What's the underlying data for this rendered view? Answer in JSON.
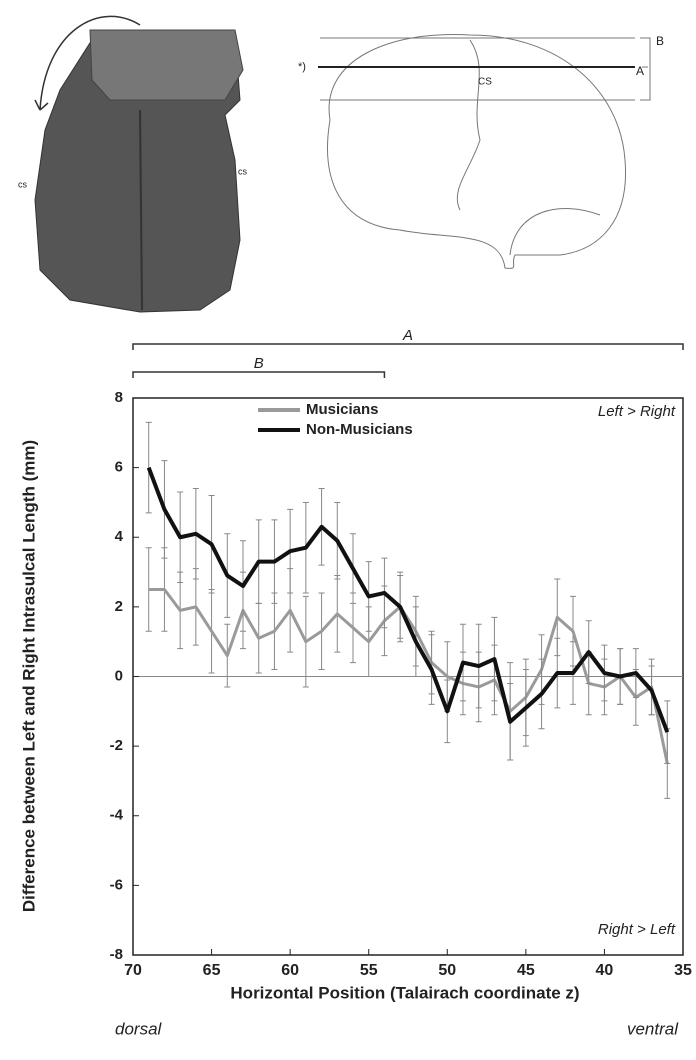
{
  "brain_labels": [
    "cs",
    "cs",
    "*)",
    "CS",
    "A",
    "B"
  ],
  "chart_data": {
    "type": "line",
    "ylabel": "Difference between Left and Right Intrasulcal Length (mm)",
    "xlabel": "Horizontal Position (Talairach coordinate z)",
    "annotations": [
      "Left > Right",
      "Right > Left",
      "dorsal",
      "ventral"
    ],
    "ranges": [
      {
        "label": "A",
        "x": [
          70,
          35
        ]
      },
      {
        "label": "B",
        "x": [
          70,
          54
        ]
      }
    ],
    "xlim": [
      70,
      35
    ],
    "ylim": [
      -8,
      8
    ],
    "xticks": [
      70,
      65,
      60,
      55,
      50,
      45,
      40,
      35
    ],
    "yticks": [
      -8,
      -6,
      -4,
      -2,
      0,
      2,
      4,
      6,
      8
    ],
    "x": [
      69,
      68,
      67,
      66,
      65,
      64,
      63,
      62,
      61,
      60,
      59,
      58,
      57,
      56,
      55,
      54,
      53,
      52,
      51,
      50,
      49,
      48,
      47,
      46,
      45,
      44,
      43,
      42,
      41,
      40,
      39,
      38,
      37,
      36
    ],
    "series": [
      {
        "name": "Musicians",
        "color": "#9a9a9a",
        "values": [
          2.5,
          2.5,
          1.9,
          2.0,
          1.3,
          0.6,
          1.9,
          1.1,
          1.3,
          1.9,
          1.0,
          1.3,
          1.8,
          1.4,
          1.0,
          1.6,
          2.0,
          1.3,
          0.4,
          0.0,
          -0.2,
          -0.3,
          -0.1,
          -1.0,
          -0.6,
          0.2,
          1.7,
          1.3,
          -0.2,
          -0.3,
          0.0,
          -0.6,
          -0.3,
          -2.5
        ],
        "errors": [
          1.2,
          1.2,
          1.1,
          1.1,
          1.2,
          0.9,
          1.1,
          1.0,
          1.1,
          1.2,
          1.3,
          1.1,
          1.1,
          1.0,
          1.0,
          1.0,
          1.0,
          1.0,
          0.9,
          1.0,
          0.9,
          1.0,
          1.0,
          1.4,
          1.1,
          1.0,
          1.1,
          1.0,
          0.9,
          0.8,
          0.8,
          0.8,
          0.8,
          1.0
        ]
      },
      {
        "name": "Non-Musicians",
        "color": "#111111",
        "values": [
          6.0,
          4.8,
          4.0,
          4.1,
          3.8,
          2.9,
          2.6,
          3.3,
          3.3,
          3.6,
          3.7,
          4.3,
          3.9,
          3.1,
          2.3,
          2.4,
          2.0,
          1.0,
          0.2,
          -1.0,
          0.4,
          0.3,
          0.5,
          -1.3,
          -0.9,
          -0.5,
          0.1,
          0.1,
          0.7,
          0.1,
          0.0,
          0.1,
          -0.4,
          -1.6
        ],
        "errors": [
          1.3,
          1.4,
          1.3,
          1.3,
          1.4,
          1.2,
          1.3,
          1.2,
          1.2,
          1.2,
          1.3,
          1.1,
          1.1,
          1.0,
          1.0,
          1.0,
          0.9,
          1.0,
          1.0,
          0.9,
          1.1,
          1.2,
          1.2,
          1.1,
          1.1,
          1.0,
          1.0,
          0.9,
          0.9,
          0.8,
          0.8,
          0.7,
          0.7,
          0.9
        ]
      }
    ]
  }
}
